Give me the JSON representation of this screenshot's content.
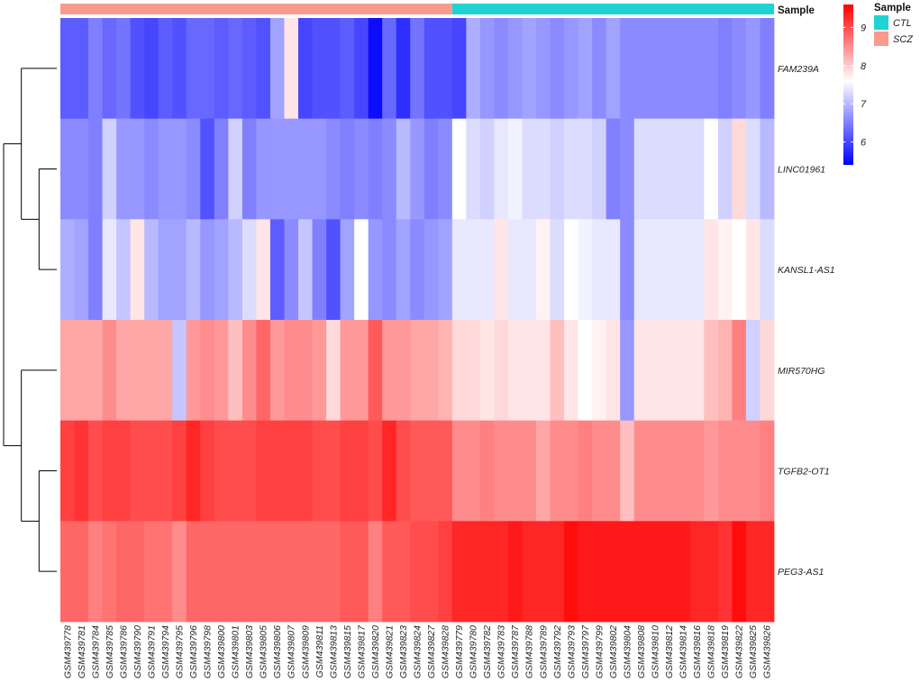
{
  "chart_data": {
    "type": "heatmap",
    "annotation_title": "Sample",
    "groups": [
      {
        "name": "SCZ",
        "color": "#F89A8E",
        "count": 28
      },
      {
        "name": "CTL",
        "color": "#20D3D3",
        "count": 23
      }
    ],
    "legend_title": "Sample",
    "legend_items": [
      {
        "label": "CTL",
        "color": "#20D3D3"
      },
      {
        "label": "SCZ",
        "color": "#F89A8E"
      }
    ],
    "colorbar": {
      "min": 5.4,
      "max": 9.6,
      "ticks": [
        "6",
        "7",
        "8",
        "9"
      ],
      "tick_values": [
        6,
        7,
        8,
        9
      ],
      "colors": [
        "#0000FF",
        "#FFFFFF",
        "#FF0000"
      ],
      "mid": 7.6
    },
    "rows": [
      "FAM239A",
      "LINC01961",
      "KANSL1-AS1",
      "MIR570HG",
      "TGFB2-OT1",
      "PEG3-AS1"
    ],
    "columns": [
      "GSM439778",
      "GSM439781",
      "GSM439784",
      "GSM439785",
      "GSM439786",
      "GSM439790",
      "GSM439791",
      "GSM439794",
      "GSM439795",
      "GSM439796",
      "GSM439798",
      "GSM439800",
      "GSM439801",
      "GSM439803",
      "GSM439805",
      "GSM439806",
      "GSM439807",
      "GSM439809",
      "GSM439811",
      "GSM439813",
      "GSM439815",
      "GSM439817",
      "GSM439820",
      "GSM439821",
      "GSM439823",
      "GSM439824",
      "GSM439827",
      "GSM439828",
      "GSM439779",
      "GSM439780",
      "GSM439782",
      "GSM439783",
      "GSM439787",
      "GSM439788",
      "GSM439789",
      "GSM439792",
      "GSM439793",
      "GSM439797",
      "GSM439799",
      "GSM439802",
      "GSM439804",
      "GSM439808",
      "GSM439810",
      "GSM439812",
      "GSM439814",
      "GSM439816",
      "GSM439818",
      "GSM439819",
      "GSM439822",
      "GSM439825",
      "GSM439826"
    ],
    "values": [
      [
        6.2,
        6.2,
        6.5,
        6.3,
        6.4,
        6.1,
        6.0,
        6.2,
        6.1,
        6.3,
        6.3,
        6.2,
        6.3,
        6.2,
        6.1,
        6.8,
        7.8,
        6.0,
        6.1,
        6.1,
        6.2,
        6.0,
        5.5,
        6.3,
        5.8,
        6.4,
        6.1,
        6.1,
        6.0,
        6.9,
        6.7,
        6.6,
        6.7,
        6.8,
        6.7,
        6.6,
        6.7,
        6.8,
        6.6,
        6.8,
        6.6,
        6.6,
        6.6,
        6.6,
        6.6,
        6.6,
        6.6,
        6.5,
        6.6,
        6.7,
        6.5
      ],
      [
        6.6,
        6.6,
        6.5,
        7.2,
        6.7,
        6.7,
        6.6,
        6.7,
        6.7,
        6.6,
        6.1,
        6.5,
        7.2,
        6.5,
        6.7,
        6.7,
        6.7,
        6.7,
        6.7,
        6.6,
        6.5,
        6.6,
        6.5,
        6.6,
        7.0,
        6.7,
        6.5,
        6.6,
        7.6,
        7.3,
        7.2,
        7.4,
        7.5,
        7.3,
        7.3,
        7.2,
        7.3,
        7.3,
        7.2,
        6.5,
        6.6,
        7.3,
        7.3,
        7.3,
        7.3,
        7.3,
        7.6,
        7.2,
        7.9,
        7.3,
        7.0
      ],
      [
        6.9,
        6.8,
        6.5,
        7.4,
        7.1,
        7.8,
        7.0,
        6.8,
        6.8,
        7.0,
        6.7,
        6.8,
        7.0,
        7.3,
        7.8,
        6.2,
        6.6,
        7.1,
        6.5,
        6.1,
        6.8,
        7.6,
        6.7,
        6.6,
        6.8,
        6.6,
        6.7,
        6.8,
        7.4,
        7.4,
        7.4,
        7.8,
        7.4,
        7.4,
        7.7,
        7.3,
        7.6,
        7.5,
        7.4,
        7.4,
        6.6,
        7.4,
        7.4,
        7.4,
        7.4,
        7.4,
        7.8,
        7.7,
        7.6,
        7.8,
        7.3
      ],
      [
        8.3,
        8.3,
        8.3,
        8.5,
        8.3,
        8.3,
        8.3,
        8.3,
        7.1,
        8.4,
        8.5,
        8.4,
        8.1,
        8.5,
        8.8,
        8.4,
        8.5,
        8.5,
        8.4,
        7.9,
        8.4,
        8.4,
        8.9,
        8.4,
        8.4,
        8.3,
        8.3,
        8.2,
        7.9,
        7.9,
        7.8,
        7.9,
        7.8,
        7.8,
        7.8,
        8.1,
        7.8,
        7.6,
        7.7,
        7.8,
        6.7,
        7.8,
        7.8,
        7.8,
        7.8,
        7.8,
        8.1,
        8.2,
        8.6,
        7.2,
        7.9
      ],
      [
        9.1,
        9.2,
        9.0,
        9.1,
        9.1,
        9.0,
        9.0,
        9.0,
        9.1,
        9.3,
        9.1,
        9.0,
        9.0,
        9.0,
        9.1,
        9.1,
        9.1,
        9.1,
        9.0,
        9.0,
        9.1,
        9.1,
        9.0,
        9.3,
        9.0,
        8.9,
        8.9,
        8.9,
        8.5,
        8.5,
        8.6,
        8.5,
        8.5,
        8.5,
        8.3,
        8.5,
        8.5,
        8.6,
        8.5,
        8.5,
        8.1,
        8.5,
        8.5,
        8.5,
        8.5,
        8.5,
        8.4,
        8.5,
        8.5,
        8.5,
        8.6
      ],
      [
        8.8,
        8.8,
        8.6,
        8.7,
        8.8,
        8.8,
        8.7,
        8.7,
        8.5,
        8.8,
        8.8,
        8.8,
        8.8,
        8.8,
        8.8,
        8.8,
        8.8,
        8.8,
        8.8,
        8.8,
        8.9,
        8.9,
        8.6,
        8.9,
        8.9,
        9.0,
        9.0,
        9.1,
        9.3,
        9.3,
        9.3,
        9.3,
        9.4,
        9.3,
        9.3,
        9.3,
        9.5,
        9.4,
        9.4,
        9.4,
        9.4,
        9.4,
        9.4,
        9.4,
        9.4,
        9.3,
        9.3,
        9.2,
        9.5,
        9.3,
        9.3
      ]
    ],
    "dendrogram": "((FAM239A,(LINC01961,KANSL1-AS1)),(MIR570HG,(TGFB2-OT1,PEG3-AS1)))"
  }
}
